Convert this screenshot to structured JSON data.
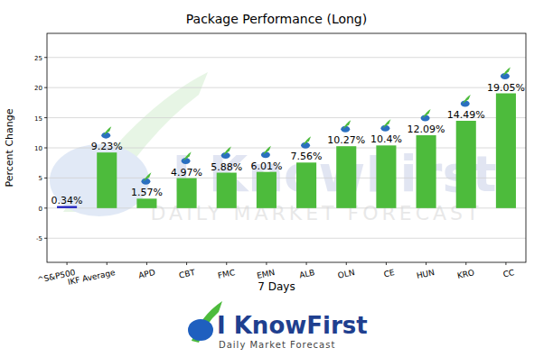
{
  "chart_data": {
    "type": "bar",
    "title": "Package Performance (Long)",
    "x_label": "7 Days",
    "y_label": "Percent Change",
    "categories": [
      "^S&P500",
      "IKF Average",
      "APD",
      "CBT",
      "FMC",
      "EMN",
      "ALB",
      "OLN",
      "CE",
      "HUN",
      "KRO",
      "CC"
    ],
    "values": [
      0.34,
      9.23,
      1.57,
      4.97,
      5.88,
      6.01,
      7.56,
      10.27,
      10.4,
      12.09,
      14.49,
      19.05
    ],
    "value_labels": [
      "0.34%",
      "9.23%",
      "1.57%",
      "4.97%",
      "5.88%",
      "6.01%",
      "7.56%",
      "10.27%",
      "10.4%",
      "12.09%",
      "14.49%",
      "19.05%"
    ],
    "colors": [
      "#1f1fbf",
      "#4dbb3c",
      "#4dbb3c",
      "#4dbb3c",
      "#4dbb3c",
      "#4dbb3c",
      "#4dbb3c",
      "#4dbb3c",
      "#4dbb3c",
      "#4dbb3c",
      "#4dbb3c",
      "#4dbb3c"
    ],
    "ylim": [
      -9,
      29
    ],
    "yticks": [
      -5,
      0,
      5,
      10,
      15,
      20,
      25
    ],
    "grid": true,
    "data_labels": true,
    "annotations": [
      "I KnowFirst",
      "Daily Market Forecast"
    ]
  }
}
